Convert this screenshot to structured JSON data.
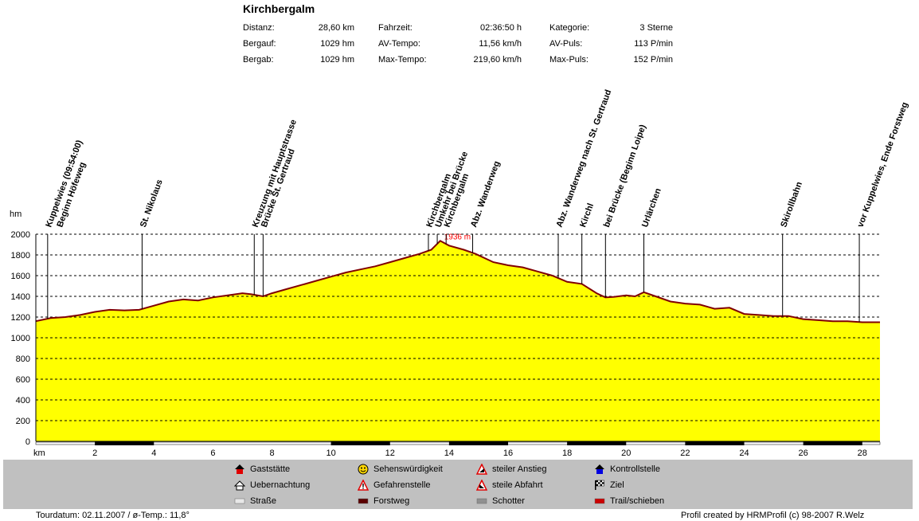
{
  "title": "Kirchbergalm",
  "stats": [
    {
      "label": "Distanz:",
      "value": "28,60 km"
    },
    {
      "label": "Bergauf:",
      "value": "1029 hm"
    },
    {
      "label": "Bergab:",
      "value": "1029 hm"
    },
    {
      "label": "Fahrzeit:",
      "value": "02:36:50 h"
    },
    {
      "label": "AV-Tempo:",
      "value": "11,56 km/h"
    },
    {
      "label": "Max-Tempo:",
      "value": "219,60 km/h"
    },
    {
      "label": "Kategorie:",
      "value": "3 Sterne"
    },
    {
      "label": "AV-Puls:",
      "value": "113 P/min"
    },
    {
      "label": "Max-Puls:",
      "value": "152 P/min"
    }
  ],
  "chart_data": {
    "type": "area",
    "ylabel": "hm",
    "xlabel": "km",
    "ylim": [
      0,
      2000
    ],
    "xlim": [
      0,
      28.6
    ],
    "y_ticks": [
      "0",
      "200",
      "400",
      "600",
      "800",
      "1000",
      "1200",
      "1400",
      "1600",
      "1800",
      "2000"
    ],
    "x_ticks": [
      "2",
      "4",
      "6",
      "8",
      "10",
      "12",
      "14",
      "16",
      "18",
      "20",
      "22",
      "24",
      "26",
      "28"
    ],
    "grid": true,
    "max_label": "1936 m",
    "max_point": {
      "x": 13.7,
      "y": 1936
    },
    "profile": {
      "x": [
        0,
        0.5,
        1,
        1.5,
        2,
        2.5,
        3,
        3.5,
        4,
        4.5,
        5,
        5.5,
        6,
        6.5,
        7,
        7.3,
        7.7,
        8,
        8.5,
        9,
        9.5,
        10,
        10.5,
        11,
        11.5,
        12,
        12.5,
        13,
        13.4,
        13.7,
        14,
        14.5,
        14.9,
        15.5,
        16,
        16.5,
        17,
        17.5,
        18,
        18.5,
        19,
        19.3,
        19.6,
        20,
        20.3,
        20.6,
        21,
        21.5,
        22,
        22.5,
        23,
        23.5,
        24,
        24.5,
        25,
        25.5,
        26,
        26.5,
        27,
        27.5,
        28,
        28.6
      ],
      "y": [
        1160,
        1190,
        1200,
        1220,
        1250,
        1270,
        1265,
        1270,
        1310,
        1350,
        1370,
        1360,
        1390,
        1410,
        1430,
        1420,
        1400,
        1430,
        1470,
        1510,
        1550,
        1590,
        1630,
        1660,
        1690,
        1730,
        1770,
        1810,
        1850,
        1936,
        1890,
        1850,
        1810,
        1730,
        1700,
        1680,
        1640,
        1600,
        1540,
        1520,
        1430,
        1390,
        1395,
        1410,
        1400,
        1440,
        1400,
        1350,
        1330,
        1320,
        1280,
        1290,
        1230,
        1220,
        1210,
        1210,
        1180,
        1170,
        1160,
        1160,
        1150,
        1150
      ]
    },
    "waypoints": [
      {
        "x": 0.4,
        "label": "Kuppelwies (09:54:00)"
      },
      {
        "x": 0.4,
        "label": "Beginn Höfeweg"
      },
      {
        "x": 3.6,
        "label": "St. Nikolaus"
      },
      {
        "x": 7.4,
        "label": "Kreuzung mit Hauptstrasse"
      },
      {
        "x": 7.7,
        "label": "Brücke St. Gertraud"
      },
      {
        "x": 13.3,
        "label": "Kirchbergalm"
      },
      {
        "x": 13.6,
        "label": "Umkehr bei Brücke"
      },
      {
        "x": 13.9,
        "label": "Kirchbergalm"
      },
      {
        "x": 14.8,
        "label": "Abz. Wanderweg"
      },
      {
        "x": 17.7,
        "label": "Abz. Wanderweg nach St. Gertraud"
      },
      {
        "x": 18.5,
        "label": "Kirchl"
      },
      {
        "x": 19.3,
        "label": "bei Brücke (Beginn Loipe)"
      },
      {
        "x": 20.6,
        "label": "Urlärchen"
      },
      {
        "x": 25.3,
        "label": "Skirollbahn"
      },
      {
        "x": 27.9,
        "label": "vor Kuppelwies, Ende Forstweg"
      }
    ],
    "surface_segments": [
      {
        "from": 2,
        "to": 4
      },
      {
        "from": 10,
        "to": 12
      },
      {
        "from": 14,
        "to": 16
      },
      {
        "from": 18,
        "to": 20
      },
      {
        "from": 22,
        "to": 24
      },
      {
        "from": 26,
        "to": 28
      }
    ]
  },
  "legend": [
    {
      "label": "Gaststätte",
      "icon": "house-icon"
    },
    {
      "label": "Sehenswürdigkeit",
      "icon": "smiley-icon"
    },
    {
      "label": "steiler Anstieg",
      "icon": "warning-up-icon"
    },
    {
      "label": "Kontrollstelle",
      "icon": "house-blue-icon"
    },
    {
      "label": "Uebernachtung",
      "icon": "hut-icon"
    },
    {
      "label": "Gefahrenstelle",
      "icon": "warning-icon"
    },
    {
      "label": "steile Abfahrt",
      "icon": "warning-down-icon"
    },
    {
      "label": "Ziel",
      "icon": "flag-icon"
    },
    {
      "label": "Straße",
      "icon": "road-swatch",
      "color": "#e8e8e8"
    },
    {
      "label": "Forstweg",
      "icon": "forest-swatch",
      "color": "#5a0000"
    },
    {
      "label": "Schotter",
      "icon": "gravel-swatch",
      "color": "#909090"
    },
    {
      "label": "Trail/schieben",
      "icon": "trail-swatch",
      "color": "#cc0000"
    }
  ],
  "footer": {
    "left": "Tourdatum: 02.11.2007  /  ø-Temp.: 11,8°",
    "right": "Profil created by HRMProfil (c) 98-2007 R.Welz"
  },
  "colors": {
    "fill": "#ffff00",
    "outline": "#800000",
    "grid": "#000000",
    "max": "#ff0000"
  }
}
